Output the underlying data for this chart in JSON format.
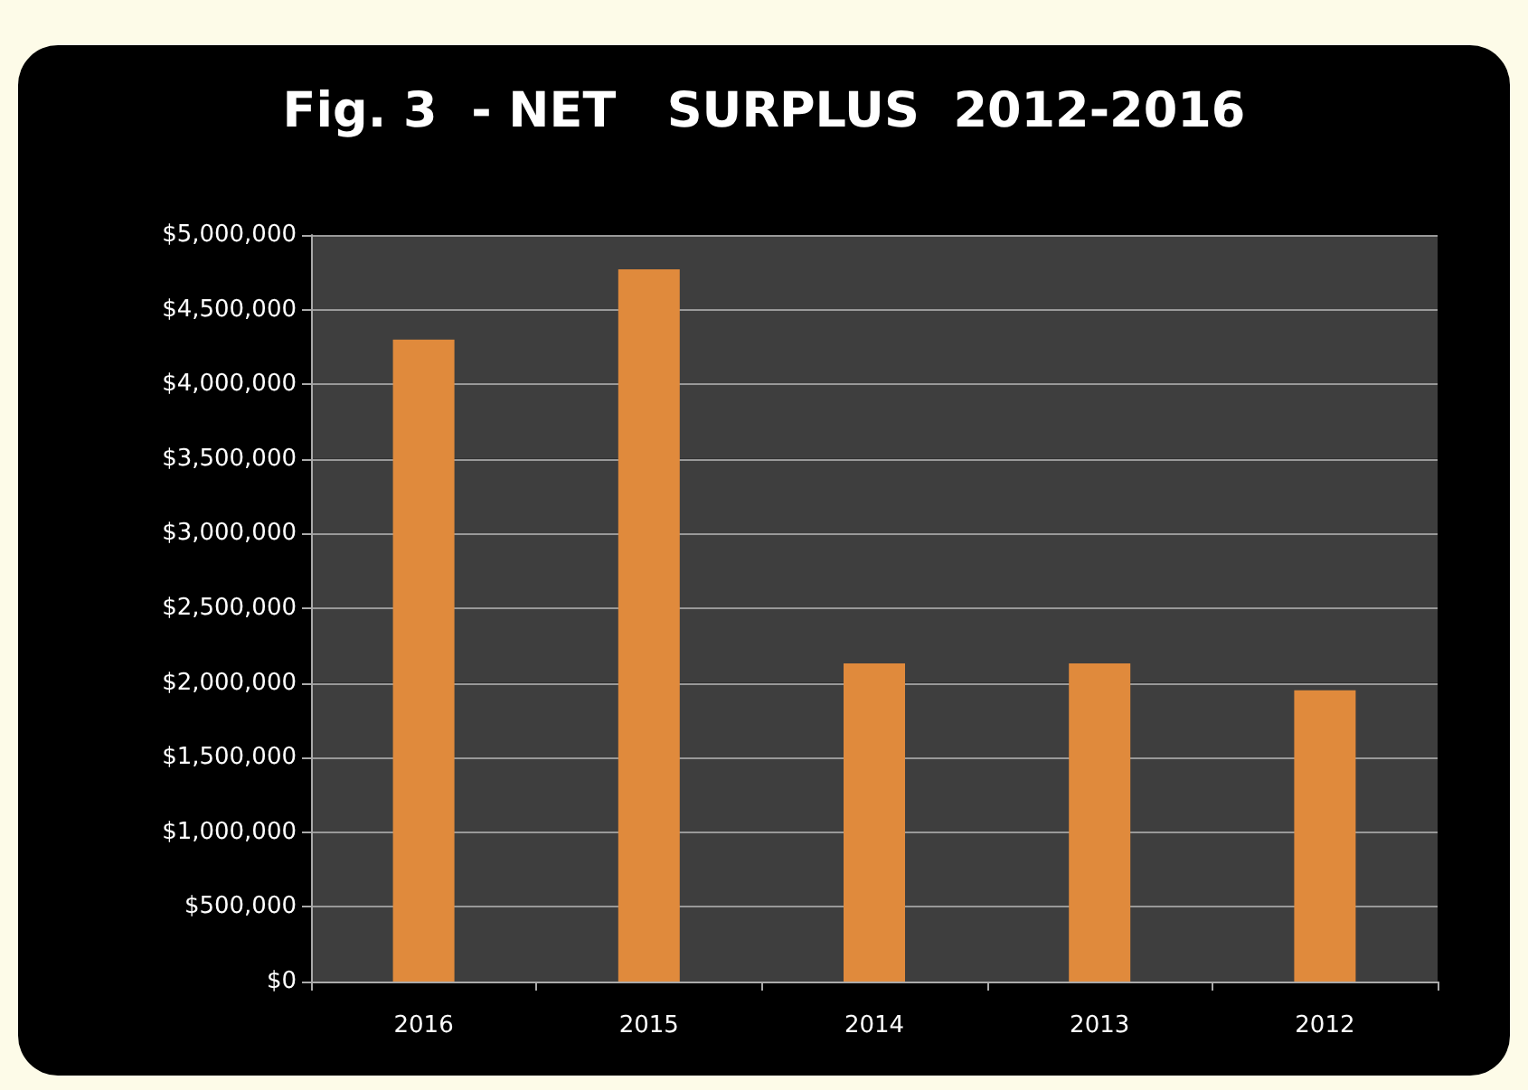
{
  "chart_data": {
    "type": "bar",
    "title": "Fig. 3  - NET   SURPLUS  2012-2016",
    "categories": [
      "2016",
      "2015",
      "2014",
      "2013",
      "2012"
    ],
    "values": [
      4300000,
      4770000,
      2130000,
      2130000,
      1950000
    ],
    "color": "#e08a3c",
    "ylim": [
      0,
      5000000
    ],
    "yticks": [
      {
        "value": 0,
        "label": "$0"
      },
      {
        "value": 500000,
        "label": "$500,000"
      },
      {
        "value": 1000000,
        "label": "$1,000,000"
      },
      {
        "value": 1500000,
        "label": "$1,500,000"
      },
      {
        "value": 2000000,
        "label": "$2,000,000"
      },
      {
        "value": 2500000,
        "label": "$2,500,000"
      },
      {
        "value": 3000000,
        "label": "$3,000,000"
      },
      {
        "value": 3500000,
        "label": "$3,500,000"
      },
      {
        "value": 4000000,
        "label": "$4,000,000"
      },
      {
        "value": 4500000,
        "label": "$4,500,000"
      },
      {
        "value": 5000000,
        "label": "$5,000,000"
      }
    ],
    "grid": "y"
  }
}
